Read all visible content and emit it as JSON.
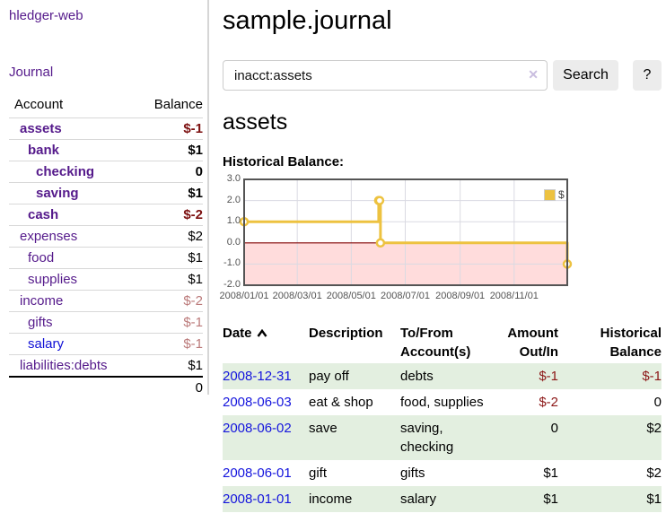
{
  "app": {
    "brand": "hledger-web",
    "nav_journal": "Journal"
  },
  "theme": {
    "link_purple": "#551a8b",
    "link_blue": "#0f0fd6",
    "negative_strong": "#7c1010",
    "negative_dim": "#bb7a7a",
    "row_green": "#e3efe0"
  },
  "sidebar": {
    "headers": {
      "account": "Account",
      "balance": "Balance"
    },
    "accounts": [
      {
        "name": "assets",
        "indent": 0,
        "bold": true,
        "balance": "$-1",
        "negative": true,
        "dimmed": false,
        "link_color": "purple"
      },
      {
        "name": "bank",
        "indent": 1,
        "bold": true,
        "balance": "$1",
        "negative": false,
        "dimmed": false,
        "link_color": "purple"
      },
      {
        "name": "checking",
        "indent": 2,
        "bold": true,
        "balance": "0",
        "negative": false,
        "dimmed": false,
        "link_color": "purple"
      },
      {
        "name": "saving",
        "indent": 2,
        "bold": true,
        "balance": "$1",
        "negative": false,
        "dimmed": false,
        "link_color": "purple"
      },
      {
        "name": "cash",
        "indent": 1,
        "bold": true,
        "balance": "$-2",
        "negative": true,
        "dimmed": false,
        "link_color": "purple"
      },
      {
        "name": "expenses",
        "indent": 0,
        "bold": false,
        "balance": "$2",
        "negative": false,
        "dimmed": false,
        "link_color": "purple"
      },
      {
        "name": "food",
        "indent": 1,
        "bold": false,
        "balance": "$1",
        "negative": false,
        "dimmed": false,
        "link_color": "purple"
      },
      {
        "name": "supplies",
        "indent": 1,
        "bold": false,
        "balance": "$1",
        "negative": false,
        "dimmed": false,
        "link_color": "purple"
      },
      {
        "name": "income",
        "indent": 0,
        "bold": false,
        "balance": "$-2",
        "negative": true,
        "dimmed": true,
        "link_color": "purple"
      },
      {
        "name": "gifts",
        "indent": 1,
        "bold": false,
        "balance": "$-1",
        "negative": true,
        "dimmed": true,
        "link_color": "purple"
      },
      {
        "name": "salary",
        "indent": 1,
        "bold": false,
        "balance": "$-1",
        "negative": true,
        "dimmed": true,
        "link_color": "blue"
      },
      {
        "name": "liabilities:debts",
        "indent": 0,
        "bold": false,
        "balance": "$1",
        "negative": false,
        "dimmed": false,
        "link_color": "purple"
      }
    ],
    "total": "0"
  },
  "main": {
    "title": "sample.journal",
    "search": {
      "value": "inacct:assets",
      "clear_icon": "✕",
      "button_label": "Search",
      "help_label": "?"
    },
    "account_heading": "assets",
    "chart_heading": "Historical Balance:"
  },
  "chart_data": {
    "type": "line",
    "title": "Historical Balance",
    "step": true,
    "legend": [
      {
        "label": "$",
        "color": "#edc240"
      }
    ],
    "legend_position": "top-right",
    "points": [
      {
        "date": "2008-01-01",
        "value": 1
      },
      {
        "date": "2008-06-01",
        "value": 2
      },
      {
        "date": "2008-06-02",
        "value": 2
      },
      {
        "date": "2008-06-03",
        "value": 0
      },
      {
        "date": "2008-12-31",
        "value": -1
      }
    ],
    "xlim": [
      "2008-01-01",
      "2008-12-31"
    ],
    "ylim": [
      -2,
      3
    ],
    "x_ticks": [
      {
        "date": "2008-01-01",
        "label": "2008/01/01"
      },
      {
        "date": "2008-03-01",
        "label": "2008/03/01"
      },
      {
        "date": "2008-05-01",
        "label": "2008/05/01"
      },
      {
        "date": "2008-07-01",
        "label": "2008/07/01"
      },
      {
        "date": "2008-09-01",
        "label": "2008/09/01"
      },
      {
        "date": "2008-11-01",
        "label": "2008/11/01"
      }
    ],
    "y_ticks": [
      {
        "value": 3,
        "label": "3.0"
      },
      {
        "value": 2,
        "label": "2.0"
      },
      {
        "value": 1,
        "label": "1.0"
      },
      {
        "value": 0,
        "label": "0.0"
      },
      {
        "value": -1,
        "label": "-1.0"
      },
      {
        "value": -2,
        "label": "-2.0"
      }
    ],
    "grid": true,
    "colors": {
      "line": "#edc240",
      "marker_fill": "#ffffff",
      "negative_fill": "#ffdcdc",
      "zero_line": "#800000",
      "grid": "#dadae2",
      "border": "#545454",
      "tick_text": "#545454"
    }
  },
  "register": {
    "headers": {
      "date": "Date",
      "description": "Description",
      "accounts": "To/From Account(s)",
      "amount": "Amount Out/In",
      "balance": "Historical Balance"
    },
    "sort": {
      "column": "date",
      "direction": "asc"
    },
    "rows": [
      {
        "date": "2008-12-31",
        "description": "pay off",
        "accounts": "debts",
        "amount": "$-1",
        "amount_negative": true,
        "balance": "$-1",
        "balance_negative": true
      },
      {
        "date": "2008-06-03",
        "description": "eat & shop",
        "accounts": "food, supplies",
        "amount": "$-2",
        "amount_negative": true,
        "balance": "0",
        "balance_negative": false
      },
      {
        "date": "2008-06-02",
        "description": "save",
        "accounts": "saving, checking",
        "amount": "0",
        "amount_negative": false,
        "balance": "$2",
        "balance_negative": false
      },
      {
        "date": "2008-06-01",
        "description": "gift",
        "accounts": "gifts",
        "amount": "$1",
        "amount_negative": false,
        "balance": "$2",
        "balance_negative": false
      },
      {
        "date": "2008-01-01",
        "description": "income",
        "accounts": "salary",
        "amount": "$1",
        "amount_negative": false,
        "balance": "$1",
        "balance_negative": false
      }
    ]
  }
}
